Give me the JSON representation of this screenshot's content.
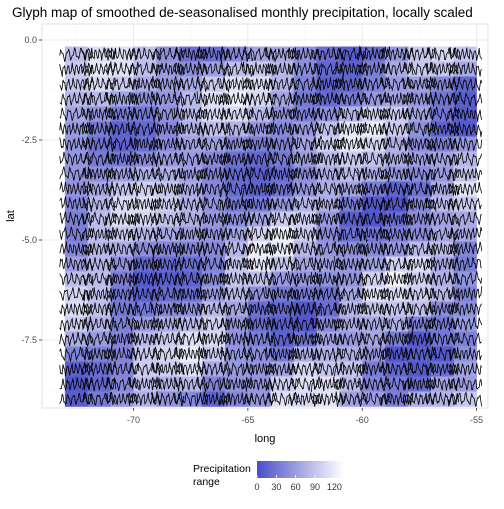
{
  "chart_data": {
    "type": "glyph-map",
    "title": "Glyph map of smoothed de-seasonalised monthly precipitation, locally scaled",
    "xlabel": "long",
    "ylabel": "lat",
    "xlim": [
      -74,
      -54.5
    ],
    "ylim": [
      -9.2,
      0.4
    ],
    "x_ticks": [
      -70,
      -65,
      -60,
      -55
    ],
    "x_tick_labels": [
      "-70",
      "-65",
      "-60",
      "-55"
    ],
    "y_ticks": [
      0.0,
      -2.5,
      -5.0,
      -7.5
    ],
    "y_tick_labels": [
      "0.0",
      "-2.5",
      "-5.0",
      "-7.5"
    ],
    "grid": true,
    "grid_long": {
      "start": -72.5,
      "step": 1,
      "count": 18
    },
    "grid_lat": {
      "start": -0.35,
      "step": -0.375,
      "count": 24
    },
    "legend": {
      "title_line1": "Precipitation",
      "title_line2": "range",
      "position": "bottom",
      "range": [
        0,
        135
      ],
      "ticks": [
        0,
        30,
        60,
        90,
        120
      ],
      "tick_labels": [
        "0",
        "30",
        "60",
        "90",
        "120"
      ],
      "color_low": "#4a4ec8",
      "color_high": "#ffffff"
    },
    "colors": {
      "glyph": "#000000",
      "panel": "#ffffff",
      "gridline": "#ebebeb"
    }
  }
}
